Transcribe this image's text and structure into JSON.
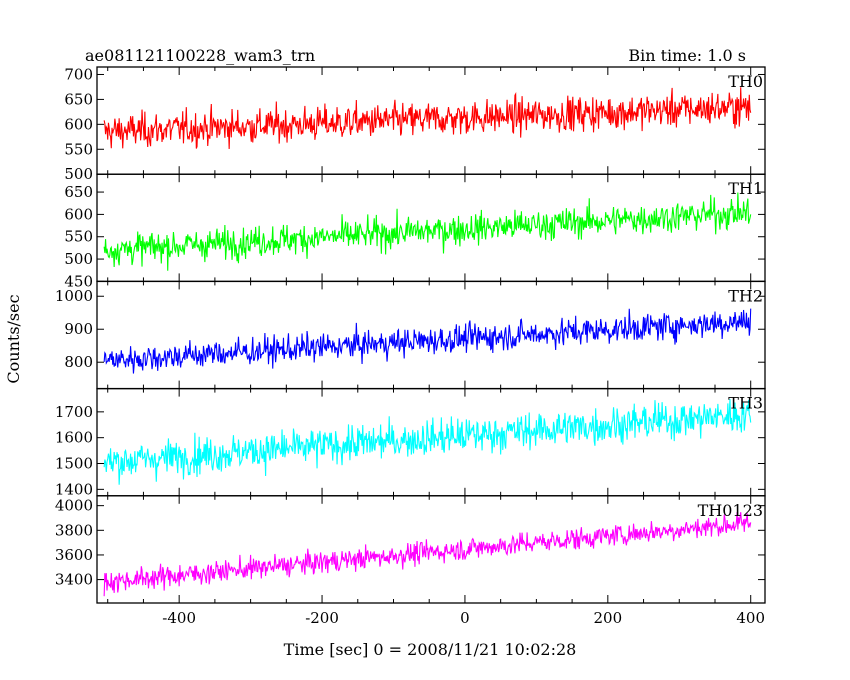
{
  "header": {
    "title": "ae081121100228_wam3_trn",
    "bin_time": "Bin time: 1.0 s"
  },
  "chart_data": {
    "type": "line",
    "title": "ae081121100228_wam3_trn",
    "subtitle": "Bin time: 1.0 s",
    "xlabel": "Time [sec] 0 = 2008/11/21 10:02:28",
    "ylabel": "Counts/sec",
    "xlim": [
      -515,
      420
    ],
    "x_range": [
      -505,
      400
    ],
    "x_ticks": [
      -400,
      -200,
      0,
      200,
      400
    ],
    "grid": false,
    "panels": [
      {
        "name": "TH0",
        "color": "#ff0000",
        "ylim": [
          500,
          715
        ],
        "y_ticks": [
          500,
          550,
          600,
          650,
          700
        ],
        "trend_start": 585,
        "trend_end": 635,
        "noise": 27
      },
      {
        "name": "TH1",
        "color": "#00ff00",
        "ylim": [
          450,
          690
        ],
        "y_ticks": [
          450,
          500,
          550,
          600,
          650
        ],
        "trend_start": 520,
        "trend_end": 605,
        "noise": 27
      },
      {
        "name": "TH2",
        "color": "#0000ff",
        "ylim": [
          720,
          1045
        ],
        "y_ticks": [
          800,
          900,
          1000
        ],
        "trend_start": 805,
        "trend_end": 925,
        "noise": 33
      },
      {
        "name": "TH3",
        "color": "#00ffff",
        "ylim": [
          1375,
          1790
        ],
        "y_ticks": [
          1400,
          1500,
          1600,
          1700
        ],
        "trend_start": 1505,
        "trend_end": 1690,
        "noise": 55
      },
      {
        "name": "TH0123",
        "color": "#ff00ff",
        "ylim": [
          3210,
          4080
        ],
        "y_ticks": [
          3400,
          3600,
          3800,
          4000
        ],
        "trend_start": 3380,
        "trend_end": 3860,
        "noise": 70
      }
    ]
  }
}
